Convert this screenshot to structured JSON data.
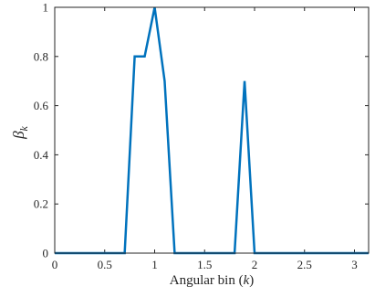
{
  "chart_data": {
    "type": "line",
    "xlabel_text": "Angular bin (",
    "xlabel_var": "k",
    "xlabel_close": ")",
    "ylabel_sym": "β",
    "ylabel_sub": "k",
    "xlim": [
      0,
      3.1416
    ],
    "ylim": [
      0,
      1
    ],
    "xticks": [
      0,
      0.5,
      1,
      1.5,
      2,
      2.5,
      3
    ],
    "xtick_labels": [
      "0",
      "0.5",
      "1",
      "1.5",
      "2",
      "2.5",
      "3"
    ],
    "yticks": [
      0,
      0.2,
      0.4,
      0.6,
      0.8,
      1
    ],
    "ytick_labels": [
      "0",
      "0.2",
      "0.4",
      "0.6",
      "0.8",
      "1"
    ],
    "grid": false,
    "color": "#0072BD",
    "series": [
      {
        "x": [
          0,
          0.7,
          0.8,
          0.9,
          1.0,
          1.1,
          1.2,
          1.3,
          1.8,
          1.9,
          2.0,
          3.1416
        ],
        "y": [
          0,
          0,
          0.8,
          0.8,
          1.0,
          0.7,
          0,
          0,
          0,
          0.7,
          0,
          0
        ]
      }
    ]
  }
}
